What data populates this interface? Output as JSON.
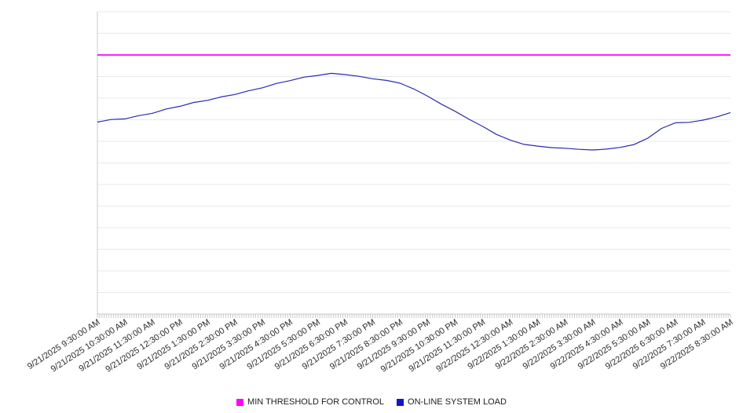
{
  "chart_data": {
    "type": "line",
    "title": "",
    "xlabel": "",
    "ylabel": "",
    "ylim": [
      0,
      140
    ],
    "grid_step": 10,
    "grid": true,
    "legend_position": "bottom",
    "x_labels": [
      "9/21/2025 9:30:00 AM",
      "9/21/2025 10:30:00 AM",
      "9/21/2025 11:30:00 AM",
      "9/21/2025 12:30:00 PM",
      "9/21/2025 1:30:00 PM",
      "9/21/2025 2:30:00 PM",
      "9/21/2025 3:30:00 PM",
      "9/21/2025 4:30:00 PM",
      "9/21/2025 5:30:00 PM",
      "9/21/2025 6:30:00 PM",
      "9/21/2025 7:30:00 PM",
      "9/21/2025 8:30:00 PM",
      "9/21/2025 9:30:00 PM",
      "9/21/2025 10:30:00 PM",
      "9/21/2025 11:30:00 PM",
      "9/22/2025 12:30:00 AM",
      "9/22/2025 1:30:00 AM",
      "9/22/2025 2:30:00 AM",
      "9/22/2025 3:30:00 AM",
      "9/22/2025 4:30:00 AM",
      "9/22/2025 5:30:00 AM",
      "9/22/2025 6:30:00 AM",
      "9/22/2025 7:30:00 AM",
      "9/22/2025 8:30:00 AM"
    ],
    "series": [
      {
        "name": "MIN THRESHOLD FOR CONTROL",
        "type": "threshold",
        "color": "#ff00ff",
        "value": 120
      },
      {
        "name": "ON-LINE SYSTEM LOAD",
        "type": "line",
        "color": "#2a2ab0",
        "interval_minutes": 30,
        "start": "9/21/2025 9:30:00 AM",
        "end": "9/22/2025 8:30:00 AM",
        "values": [
          88.9,
          90.1,
          90.4,
          91.9,
          93.0,
          95.0,
          96.2,
          98.0,
          99.0,
          100.6,
          101.7,
          103.4,
          104.8,
          106.8,
          108.1,
          109.7,
          110.5,
          111.5,
          110.9,
          110.1,
          109.0,
          108.2,
          106.9,
          104.2,
          100.9,
          97.2,
          93.9,
          90.2,
          86.9,
          83.2,
          80.6,
          78.6,
          77.8,
          77.1,
          76.8,
          76.3,
          76.0,
          76.4,
          77.2,
          78.5,
          81.5,
          86.0,
          88.6,
          88.8,
          89.8,
          91.3,
          93.3
        ]
      }
    ],
    "colors": {
      "gridline": "#e9e9e9",
      "axis": "#c9c9c9",
      "tick": "#bfbfbf",
      "label_text": "#2b2b2b"
    }
  },
  "legend": {
    "items": [
      {
        "label": "MIN THRESHOLD FOR CONTROL",
        "color": "#ff00ff"
      },
      {
        "label": "ON-LINE SYSTEM LOAD",
        "color": "#1414cc"
      }
    ]
  }
}
